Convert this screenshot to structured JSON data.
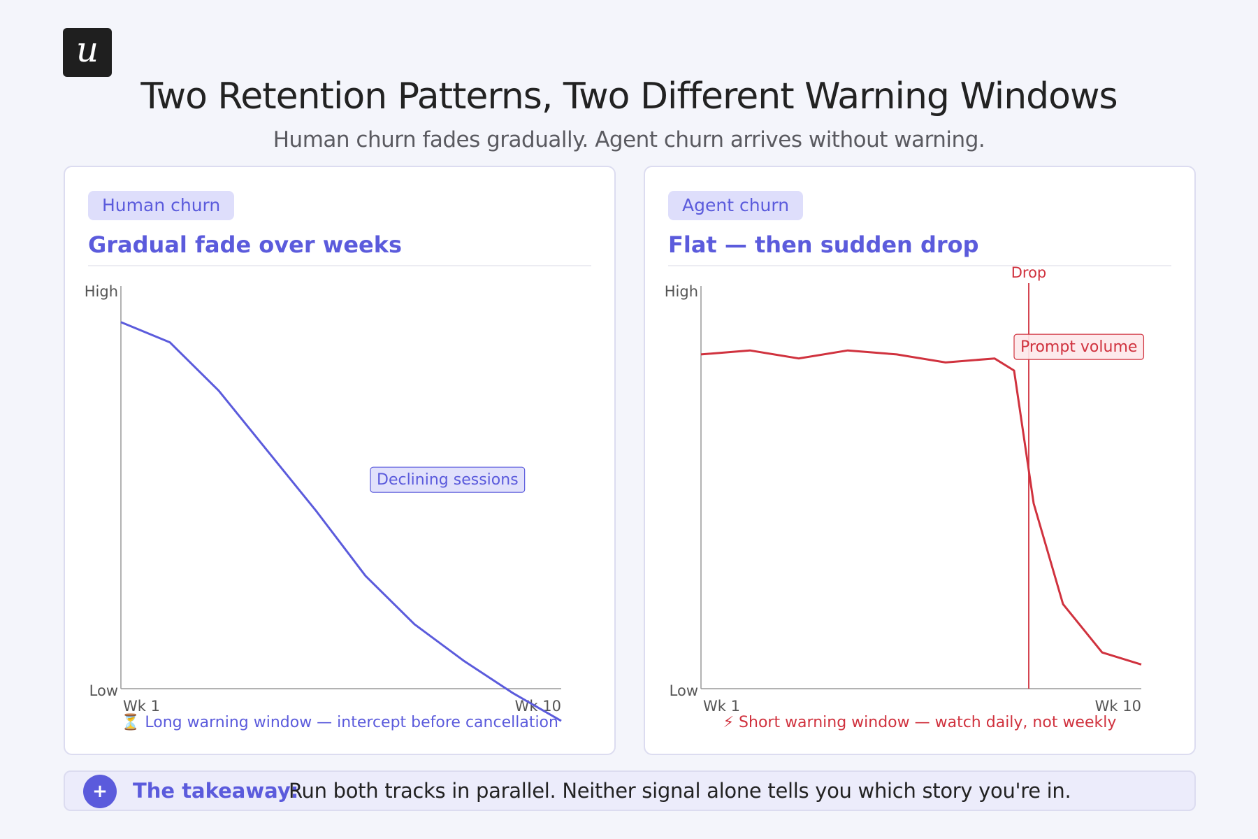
{
  "header": {
    "logo_glyph": "u",
    "title": "Two Retention Patterns, Two Different Warning Windows",
    "subtitle": "Human churn fades gradually. Agent churn arrives without warning."
  },
  "colors": {
    "human": "#5b5bdc",
    "agent": "#d0323e",
    "human_tag_bg": "#dedefb",
    "agent_tag_bg": "#fde8ea"
  },
  "chart_data": [
    {
      "type": "line",
      "tag": "Human churn",
      "title": "Gradual fade over weeks",
      "y_tick_labels": [
        "High",
        "Low"
      ],
      "x_tick_labels": [
        "Wk 1",
        "Wk 10"
      ],
      "ylim": [
        0,
        100
      ],
      "x": [
        1,
        2,
        3,
        4,
        5,
        6,
        7,
        8,
        9,
        10
      ],
      "series": [
        {
          "name": "Declining sessions",
          "values": [
            91,
            86,
            74,
            59,
            44,
            28,
            16,
            7,
            -1,
            -8
          ]
        }
      ],
      "annotation": {
        "text": "Declining sessions",
        "x": 6.1,
        "y": 55
      },
      "footnote": "⏳ Long warning window — intercept before cancellation"
    },
    {
      "type": "line",
      "tag": "Agent churn",
      "title": "Flat — then sudden drop",
      "y_tick_labels": [
        "High",
        "Low"
      ],
      "x_tick_labels": [
        "Wk 1",
        "Wk 10"
      ],
      "ylim": [
        0,
        100
      ],
      "x": [
        1,
        2,
        3,
        4,
        5,
        6,
        7,
        7.4,
        7.8,
        8.4,
        9.2,
        10
      ],
      "series": [
        {
          "name": "Prompt volume",
          "values": [
            83,
            84,
            82,
            84,
            83,
            81,
            82,
            79,
            46,
            21,
            9,
            6
          ]
        }
      ],
      "annotation": {
        "text": "Prompt volume",
        "x": 7.4,
        "y": 88
      },
      "reference_line": {
        "x": 7.7,
        "label": "Drop"
      },
      "footnote": "⚡ Short warning window — watch daily, not weekly"
    }
  ],
  "takeaway": {
    "icon": "+",
    "label": "The takeaway:",
    "text": "Run both tracks in parallel. Neither signal alone tells you which story you're in."
  }
}
